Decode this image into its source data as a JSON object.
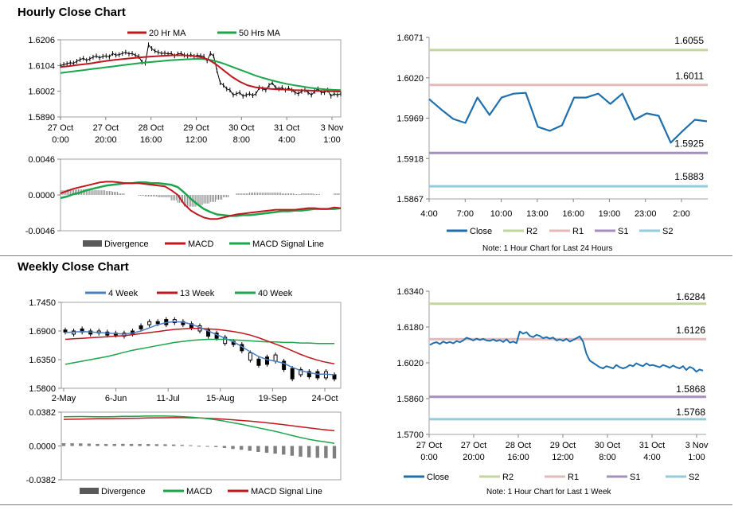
{
  "sections": {
    "hourly_title": "Hourly Close Chart",
    "weekly_title": "Weekly Close Chart"
  },
  "colors": {
    "red_ma": "#c0171e",
    "green_ma": "#1aa64a",
    "blue_close": "#1f6fad",
    "blue_4wk": "#4a7fc1",
    "r2": "#c3d69b",
    "r1": "#e6b9b8",
    "s1": "#a48fbf",
    "s2": "#93cddd",
    "divergence": "#7f7f7f"
  },
  "chart_data": [
    {
      "id": "hourly-price",
      "type": "line",
      "ylim": [
        1.589,
        1.6206
      ],
      "yticks": [
        "1.6206",
        "1.6104",
        "1.6002",
        "1.5890"
      ],
      "xticks": [
        [
          "27 Oct",
          "0:00"
        ],
        [
          "27 Oct",
          "20:00"
        ],
        [
          "28 Oct",
          "16:00"
        ],
        [
          "29 Oct",
          "12:00"
        ],
        [
          "30 Oct",
          "8:00"
        ],
        [
          "31 Oct",
          "4:00"
        ],
        [
          "3 Nov",
          "1:00"
        ]
      ],
      "legend": [
        "20 Hr MA",
        "50 Hrs MA"
      ],
      "close": [
        1.61,
        1.6105,
        1.6108,
        1.6112,
        1.611,
        1.6118,
        1.6125,
        1.613,
        1.6122,
        1.6128,
        1.6135,
        1.614,
        1.6132,
        1.6138,
        1.614,
        1.6136,
        1.615,
        1.6143,
        1.6145,
        1.615,
        1.6155,
        1.6148,
        1.615,
        1.6142,
        1.6138,
        1.6115,
        1.611,
        1.6185,
        1.617,
        1.616,
        1.6155,
        1.615,
        1.6152,
        1.6148,
        1.615,
        1.614,
        1.6148,
        1.615,
        1.6143,
        1.614,
        1.6145,
        1.6138,
        1.6142,
        1.614,
        1.6138,
        1.612,
        1.615,
        1.614,
        1.608,
        1.603,
        1.602,
        1.6005,
        1.6,
        1.598,
        1.5985,
        1.599,
        1.5975,
        1.598,
        1.5985,
        1.5978,
        1.5985,
        1.601,
        1.6005,
        1.6,
        1.602,
        1.603,
        1.601,
        1.6005,
        1.601,
        1.6,
        1.6008,
        1.6,
        1.599,
        1.5985,
        1.5995,
        1.6,
        1.599,
        1.598,
        1.5995,
        1.6005,
        1.599,
        1.599,
        1.6,
        1.5975,
        1.5985,
        1.598,
        1.5985
      ],
      "series": [
        {
          "name": "20 Hr MA",
          "values": [
            1.6095,
            1.6098,
            1.6102,
            1.6106,
            1.611,
            1.6115,
            1.612,
            1.6124,
            1.6127,
            1.613,
            1.6133,
            1.6136,
            1.6138,
            1.614,
            1.6142,
            1.6143,
            1.6142,
            1.614,
            1.6135,
            1.6125,
            1.6105,
            1.608,
            1.6055,
            1.6035,
            1.602,
            1.6012,
            1.6008,
            1.6005,
            1.6003,
            1.6002,
            1.6,
            1.5999,
            1.5998,
            1.5997,
            1.5996,
            1.5995,
            1.5994
          ]
        },
        {
          "name": "50 Hrs MA",
          "values": [
            1.607,
            1.6074,
            1.6078,
            1.6082,
            1.6086,
            1.609,
            1.6094,
            1.6098,
            1.6102,
            1.6106,
            1.611,
            1.6113,
            1.6116,
            1.6119,
            1.6122,
            1.6124,
            1.6126,
            1.6127,
            1.6128,
            1.6125,
            1.6118,
            1.6108,
            1.6096,
            1.6084,
            1.6072,
            1.606,
            1.605,
            1.6041,
            1.6033,
            1.6026,
            1.602,
            1.6015,
            1.601,
            1.6006,
            1.6003,
            1.6001,
            1.6
          ]
        }
      ]
    },
    {
      "id": "hourly-macd",
      "type": "line",
      "ylim": [
        -0.0046,
        0.0046
      ],
      "yticks": [
        "0.0046",
        "0.0000",
        "-0.0046"
      ],
      "legend": [
        "Divergence",
        "MACD",
        "MACD Signal Line"
      ],
      "series": [
        {
          "name": "MACD",
          "values": [
            0.0002,
            0.0005,
            0.0008,
            0.001,
            0.0012,
            0.0014,
            0.0016,
            0.0017,
            0.0017,
            0.0016,
            0.0015,
            0.0015,
            0.0015,
            0.0014,
            0.0013,
            0.0012,
            0.0011,
            0.0006,
            0.0,
            -0.0012,
            -0.002,
            -0.0025,
            -0.0029,
            -0.0031,
            -0.0031,
            -0.0029,
            -0.0027,
            -0.0025,
            -0.0024,
            -0.0023,
            -0.0022,
            -0.0021,
            -0.002,
            -0.0019,
            -0.0019,
            -0.0019,
            -0.0019,
            -0.0018,
            -0.0017,
            -0.0017,
            -0.0018,
            -0.0018,
            -0.0016,
            -0.0017
          ]
        },
        {
          "name": "MACD Signal Line",
          "values": [
            -0.0004,
            -0.0002,
            0.0001,
            0.0003,
            0.0006,
            0.0008,
            0.001,
            0.0012,
            0.0013,
            0.0014,
            0.0015,
            0.0015,
            0.0016,
            0.0016,
            0.0015,
            0.0015,
            0.0014,
            0.0013,
            0.001,
            0.0003,
            -0.0005,
            -0.0012,
            -0.0018,
            -0.0022,
            -0.0025,
            -0.0026,
            -0.0027,
            -0.0027,
            -0.0026,
            -0.0026,
            -0.0025,
            -0.0024,
            -0.0023,
            -0.0022,
            -0.0021,
            -0.0021,
            -0.002,
            -0.002,
            -0.0019,
            -0.0018,
            -0.0018,
            -0.0018,
            -0.0018,
            -0.0017
          ]
        },
        {
          "name": "Divergence",
          "values": [
            0.0006,
            0.0007,
            0.0007,
            0.0007,
            0.0006,
            0.0006,
            0.0006,
            0.0005,
            0.0004,
            0.0002,
            0.0,
            0.0,
            -0.0001,
            -0.0002,
            -0.0002,
            -0.0003,
            -0.0003,
            -0.0007,
            -0.001,
            -0.0015,
            -0.0015,
            -0.0013,
            -0.0011,
            -0.0009,
            -0.0006,
            -0.0003,
            0.0,
            0.0002,
            0.0002,
            0.0003,
            0.0003,
            0.0003,
            0.0003,
            0.0003,
            0.0002,
            0.0002,
            0.0001,
            0.0002,
            0.0002,
            0.0001,
            0.0,
            0.0,
            0.0002,
            0.0
          ]
        }
      ]
    },
    {
      "id": "hourly-pivot",
      "type": "line",
      "ylim": [
        1.5867,
        1.6071
      ],
      "yticks": [
        "1.6071",
        "1.6020",
        "1.5969",
        "1.5918",
        "1.5867"
      ],
      "xticks": [
        "4:00",
        "7:00",
        "10:00",
        "13:00",
        "16:00",
        "19:00",
        "23:00",
        "2:00"
      ],
      "legend": [
        "Close",
        "R2",
        "R1",
        "S1",
        "S2"
      ],
      "levels": {
        "R2": 1.6055,
        "R1": 1.6011,
        "S1": 1.5925,
        "S2": 1.5883
      },
      "level_labels": {
        "R2": "1.6055",
        "R1": "1.6011",
        "S1": "1.5925",
        "S2": "1.5883"
      },
      "note": "Note: 1 Hour Chart for Last 24 Hours",
      "close": [
        1.5993,
        1.598,
        1.5968,
        1.5963,
        1.5995,
        1.5973,
        1.5995,
        1.6,
        1.6001,
        1.5958,
        1.5953,
        1.596,
        1.5995,
        1.5995,
        1.6,
        1.5987,
        1.6,
        1.5967,
        1.5975,
        1.5972,
        1.5938,
        1.5953,
        1.5967,
        1.5965
      ]
    },
    {
      "id": "weekly-price",
      "type": "line",
      "ylim": [
        1.58,
        1.745
      ],
      "yticks": [
        "1.7450",
        "1.6900",
        "1.6350",
        "1.5800"
      ],
      "xticks": [
        "2-May",
        "6-Jun",
        "11-Jul",
        "15-Aug",
        "19-Sep",
        "24-Oct"
      ],
      "legend": [
        "4 Week",
        "13 Week",
        "40 Week"
      ],
      "candles": [
        [
          1.688,
          1.692
        ],
        [
          1.684,
          1.69
        ],
        [
          1.688,
          1.694
        ],
        [
          1.684,
          1.69
        ],
        [
          1.686,
          1.69
        ],
        [
          1.682,
          1.688
        ],
        [
          1.682,
          1.686
        ],
        [
          1.68,
          1.686
        ],
        [
          1.684,
          1.69
        ],
        [
          1.694,
          1.7
        ],
        [
          1.702,
          1.708
        ],
        [
          1.704,
          1.708
        ],
        [
          1.702,
          1.712
        ],
        [
          1.706,
          1.712
        ],
        [
          1.702,
          1.708
        ],
        [
          1.696,
          1.704
        ],
        [
          1.69,
          1.7
        ],
        [
          1.68,
          1.692
        ],
        [
          1.676,
          1.686
        ],
        [
          1.666,
          1.678
        ],
        [
          1.664,
          1.67
        ],
        [
          1.652,
          1.664
        ],
        [
          1.634,
          1.648
        ],
        [
          1.624,
          1.636
        ],
        [
          1.626,
          1.64
        ],
        [
          1.632,
          1.644
        ],
        [
          1.616,
          1.632
        ],
        [
          1.598,
          1.618
        ],
        [
          1.606,
          1.616
        ],
        [
          1.602,
          1.612
        ],
        [
          1.6,
          1.612
        ],
        [
          1.6,
          1.612
        ],
        [
          1.598,
          1.606
        ]
      ],
      "series": [
        {
          "name": "4 Week",
          "values": [
            1.687,
            1.688,
            1.689,
            1.688,
            1.687,
            1.686,
            1.685,
            1.684,
            1.686,
            1.69,
            1.696,
            1.702,
            1.706,
            1.708,
            1.707,
            1.703,
            1.697,
            1.69,
            1.683,
            1.676,
            1.669,
            1.66,
            1.65,
            1.641,
            1.635,
            1.632,
            1.628,
            1.62,
            1.614,
            1.61,
            1.607,
            1.607,
            1.606
          ]
        },
        {
          "name": "13 Week",
          "values": [
            1.674,
            1.675,
            1.676,
            1.677,
            1.678,
            1.679,
            1.68,
            1.681,
            1.683,
            1.685,
            1.687,
            1.689,
            1.691,
            1.693,
            1.694,
            1.695,
            1.695,
            1.694,
            1.693,
            1.691,
            1.689,
            1.686,
            1.682,
            1.677,
            1.671,
            1.665,
            1.659,
            1.652,
            1.645,
            1.639,
            1.634,
            1.63,
            1.627
          ]
        },
        {
          "name": "40 Week",
          "values": [
            1.626,
            1.629,
            1.632,
            1.635,
            1.638,
            1.641,
            1.645,
            1.649,
            1.653,
            1.656,
            1.659,
            1.662,
            1.665,
            1.668,
            1.67,
            1.672,
            1.673,
            1.674,
            1.674,
            1.674,
            1.673,
            1.672,
            1.671,
            1.67,
            1.669,
            1.669,
            1.668,
            1.668,
            1.667,
            1.667,
            1.666,
            1.666,
            1.666
          ]
        }
      ]
    },
    {
      "id": "weekly-macd",
      "type": "line",
      "ylim": [
        -0.0382,
        0.0382
      ],
      "yticks": [
        "0.0382",
        "0.0000",
        "-0.0382"
      ],
      "legend": [
        "Divergence",
        "MACD",
        "MACD Signal Line"
      ],
      "series": [
        {
          "name": "MACD",
          "values": [
            0.033,
            0.0332,
            0.0333,
            0.0332,
            0.033,
            0.033,
            0.0332,
            0.0334,
            0.0335,
            0.0336,
            0.0338,
            0.0338,
            0.0338,
            0.0336,
            0.0332,
            0.0326,
            0.0318,
            0.0308,
            0.0296,
            0.028,
            0.0262,
            0.0245,
            0.0225,
            0.0205,
            0.0185,
            0.0165,
            0.0142,
            0.0118,
            0.0095,
            0.0075,
            0.0058,
            0.0045,
            0.003
          ]
        },
        {
          "name": "MACD Signal Line",
          "values": [
            0.03,
            0.0302,
            0.0304,
            0.0306,
            0.0307,
            0.0308,
            0.0309,
            0.031,
            0.0312,
            0.0314,
            0.0316,
            0.0318,
            0.0319,
            0.032,
            0.032,
            0.0318,
            0.0316,
            0.0312,
            0.0308,
            0.0302,
            0.0296,
            0.0288,
            0.028,
            0.0272,
            0.0262,
            0.0252,
            0.024,
            0.0228,
            0.0216,
            0.0204,
            0.0192,
            0.0182,
            0.0172
          ]
        },
        {
          "name": "Divergence",
          "values": [
            0.003,
            0.003,
            0.0029,
            0.0026,
            0.0023,
            0.0022,
            0.0023,
            0.0024,
            0.0023,
            0.0022,
            0.0022,
            0.002,
            0.0019,
            0.0016,
            0.0012,
            0.0008,
            0.0002,
            -0.0004,
            -0.0012,
            -0.0022,
            -0.0034,
            -0.0043,
            -0.0055,
            -0.0067,
            -0.0077,
            -0.0087,
            -0.0098,
            -0.011,
            -0.0121,
            -0.0129,
            -0.0134,
            -0.0137,
            -0.0142
          ]
        }
      ]
    },
    {
      "id": "weekly-pivot",
      "type": "line",
      "ylim": [
        1.57,
        1.634
      ],
      "yticks": [
        "1.6340",
        "1.6180",
        "1.6020",
        "1.5860",
        "1.5700"
      ],
      "xticks": [
        [
          "27 Oct",
          "0:00"
        ],
        [
          "27 Oct",
          "20:00"
        ],
        [
          "28 Oct",
          "16:00"
        ],
        [
          "29 Oct",
          "12:00"
        ],
        [
          "30 Oct",
          "8:00"
        ],
        [
          "31 Oct",
          "4:00"
        ],
        [
          "3 Nov",
          "1:00"
        ]
      ],
      "legend": [
        "Close",
        "R2",
        "R1",
        "S1",
        "S2"
      ],
      "levels": {
        "R2": 1.6284,
        "R1": 1.6126,
        "S1": 1.5868,
        "S2": 1.5768
      },
      "level_labels": {
        "R2": "1.6284",
        "R1": "1.6126",
        "S1": "1.5868",
        "S2": "1.5768"
      },
      "note": "Note: 1 Hour Chart for Last 1 Week",
      "close": [
        1.61,
        1.6108,
        1.6112,
        1.6104,
        1.6115,
        1.6108,
        1.6113,
        1.6107,
        1.6117,
        1.6112,
        1.612,
        1.6132,
        1.6127,
        1.612,
        1.6128,
        1.6122,
        1.6127,
        1.612,
        1.6118,
        1.6124,
        1.6117,
        1.6122,
        1.6113,
        1.6125,
        1.611,
        1.6115,
        1.6108,
        1.616,
        1.615,
        1.6157,
        1.614,
        1.6135,
        1.6145,
        1.614,
        1.613,
        1.6135,
        1.6128,
        1.6133,
        1.612,
        1.6125,
        1.6118,
        1.6127,
        1.6115,
        1.6122,
        1.613,
        1.6138,
        1.6115,
        1.606,
        1.603,
        1.602,
        1.601,
        1.6,
        1.5995,
        1.6005,
        1.6,
        1.5995,
        1.601,
        1.6,
        1.5995,
        1.6,
        1.601,
        1.6005,
        1.6018,
        1.601,
        1.6005,
        1.6018,
        1.6008,
        1.601,
        1.6005,
        1.6,
        1.601,
        1.6005,
        1.5998,
        1.6008,
        1.6,
        1.5995,
        1.6005,
        1.5988,
        1.6002,
        1.5995,
        1.598,
        1.599,
        1.5985
      ]
    }
  ]
}
